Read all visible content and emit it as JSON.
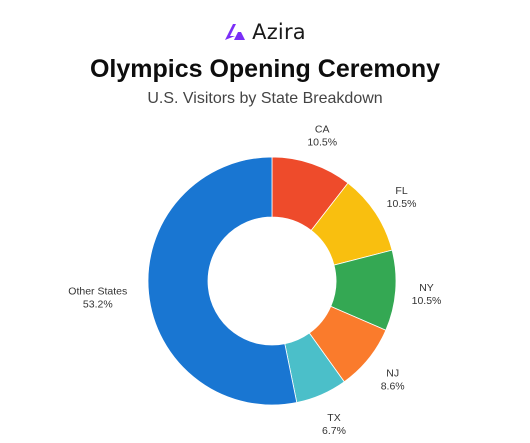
{
  "brand": {
    "name": "Azira",
    "logo_color": "#7B2FF7"
  },
  "chart_data": {
    "type": "pie",
    "variant": "donut",
    "title": "Olympics Opening Ceremony",
    "subtitle": "U.S. Visitors by State Breakdown",
    "slices": [
      {
        "label": "CA",
        "value": 10.5,
        "display": "10.5%",
        "color": "#EE4B2B"
      },
      {
        "label": "FL",
        "value": 10.5,
        "display": "10.5%",
        "color": "#F9BF0F"
      },
      {
        "label": "NY",
        "value": 10.5,
        "display": "10.5%",
        "color": "#34A853"
      },
      {
        "label": "NJ",
        "value": 8.6,
        "display": "8.6%",
        "color": "#FA7B2C"
      },
      {
        "label": "TX",
        "value": 6.7,
        "display": "6.7%",
        "color": "#4BBFC9"
      },
      {
        "label": "Other States",
        "value": 53.2,
        "display": "53.2%",
        "color": "#1976D2"
      }
    ]
  }
}
